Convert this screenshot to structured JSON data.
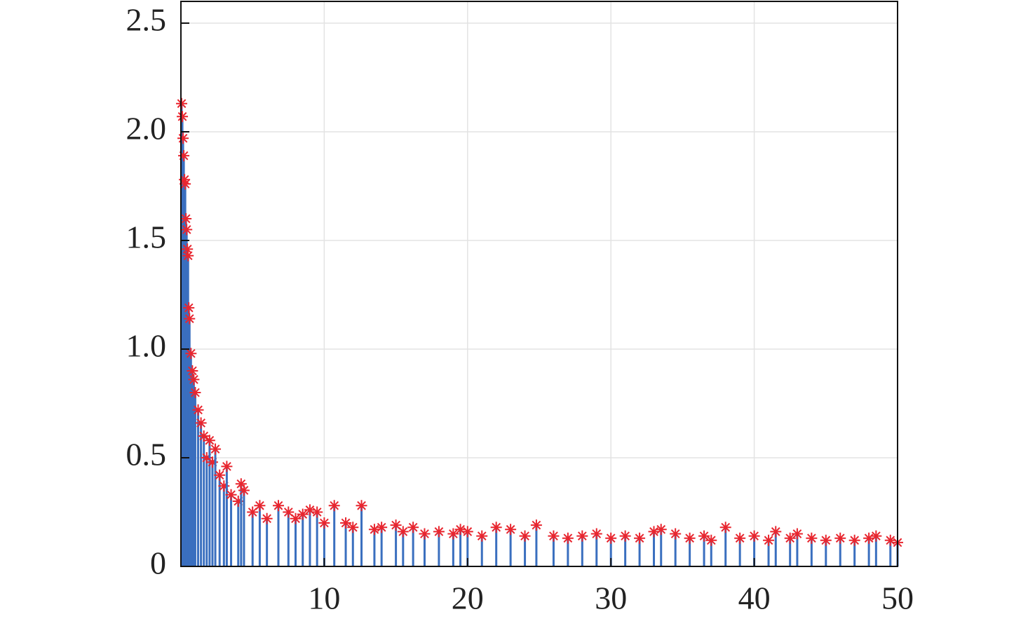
{
  "chart_data": {
    "type": "stem",
    "x": [
      0.05,
      0.1,
      0.15,
      0.2,
      0.25,
      0.3,
      0.35,
      0.4,
      0.45,
      0.5,
      0.55,
      0.6,
      0.7,
      0.8,
      0.9,
      1.0,
      1.2,
      1.4,
      1.6,
      1.8,
      2.0,
      2.2,
      2.4,
      2.7,
      3.0,
      3.2,
      3.5,
      4.0,
      4.2,
      4.4,
      5.0,
      5.5,
      6.0,
      6.8,
      7.5,
      8.0,
      8.5,
      9.0,
      9.5,
      10.0,
      10.7,
      11.5,
      12.0,
      12.6,
      13.5,
      14.0,
      15.0,
      15.5,
      16.2,
      17.0,
      18.0,
      19.0,
      19.5,
      20.0,
      21.0,
      22.0,
      23.0,
      24.0,
      24.8,
      26.0,
      27.0,
      28.0,
      29.0,
      30.0,
      31.0,
      32.0,
      33.0,
      33.5,
      34.5,
      35.5,
      36.5,
      37.0,
      38.0,
      39.0,
      40.0,
      41.0,
      41.5,
      42.5,
      43.0,
      44.0,
      45.0,
      46.0,
      47.0,
      48.0,
      48.5,
      49.5,
      50.0
    ],
    "values": [
      2.13,
      2.07,
      1.97,
      1.89,
      1.78,
      1.76,
      1.6,
      1.55,
      1.46,
      1.43,
      1.19,
      1.14,
      0.98,
      0.9,
      0.86,
      0.8,
      0.72,
      0.66,
      0.6,
      0.5,
      0.58,
      0.48,
      0.54,
      0.42,
      0.37,
      0.46,
      0.33,
      0.3,
      0.38,
      0.35,
      0.25,
      0.28,
      0.22,
      0.28,
      0.25,
      0.22,
      0.24,
      0.26,
      0.25,
      0.2,
      0.28,
      0.2,
      0.18,
      0.28,
      0.17,
      0.18,
      0.19,
      0.16,
      0.18,
      0.15,
      0.16,
      0.15,
      0.17,
      0.16,
      0.14,
      0.18,
      0.17,
      0.14,
      0.19,
      0.14,
      0.13,
      0.14,
      0.15,
      0.13,
      0.14,
      0.13,
      0.16,
      0.17,
      0.15,
      0.13,
      0.14,
      0.12,
      0.18,
      0.13,
      0.14,
      0.12,
      0.16,
      0.13,
      0.15,
      0.13,
      0.12,
      0.13,
      0.12,
      0.13,
      0.14,
      0.12,
      0.11
    ],
    "stem_color": "#3a6fbf",
    "marker_color": "#e8262f",
    "xlim": [
      0,
      50
    ],
    "xticks": [
      10,
      20,
      30,
      40,
      50
    ],
    "ylim": [
      0,
      2.6
    ],
    "yticks": [
      0,
      0.5,
      {
        "value": 1,
        "label": "1.0"
      },
      1.5,
      {
        "value": 2,
        "label": "2.0"
      },
      2.5
    ],
    "grid": true
  }
}
